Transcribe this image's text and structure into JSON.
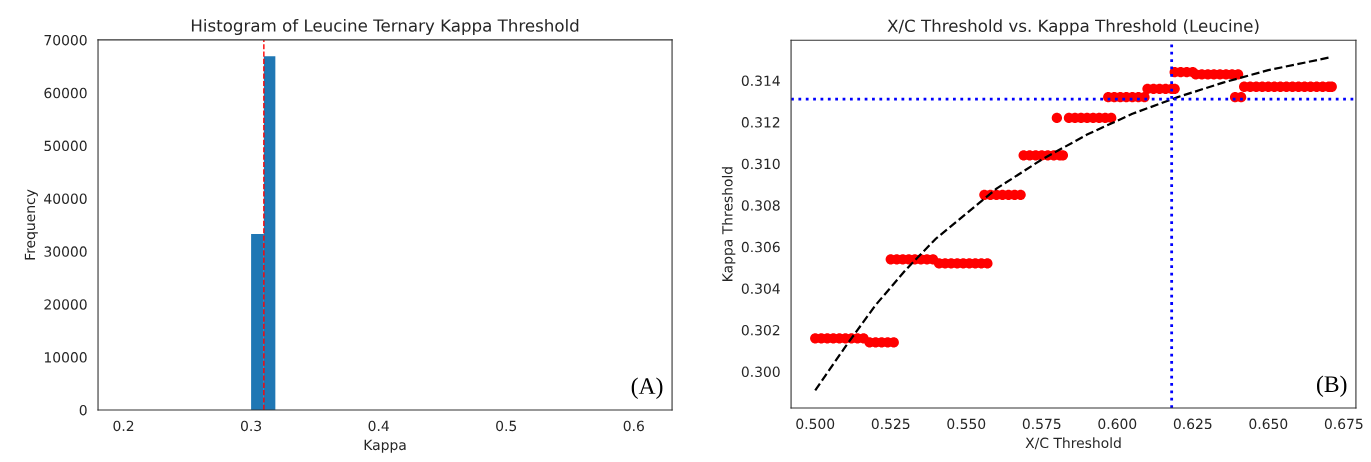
{
  "chart_data": [
    {
      "type": "histogram",
      "title": "Histogram of Leucine Ternary Kappa Threshold",
      "xlabel": "Kappa",
      "ylabel": "Frequency",
      "bins": [
        0.3,
        0.31,
        0.319
      ],
      "values": [
        33300,
        66900
      ],
      "color": "#1f77b4",
      "xlim": [
        0.18,
        0.63
      ],
      "xticks": [
        0.2,
        0.3,
        0.4,
        0.5,
        0.6
      ],
      "ylim": [
        0,
        70000
      ],
      "yticks": [
        0,
        10000,
        20000,
        30000,
        40000,
        50000,
        60000,
        70000
      ],
      "ref_lines": [
        {
          "axis": "x",
          "value": 0.31,
          "color": "#ff0000",
          "line_style": "dashed"
        }
      ],
      "annotations": [
        "(A)"
      ],
      "grid": false
    },
    {
      "type": "scatter",
      "title": "X/C Threshold vs. Kappa Threshold (Leucine)",
      "xlabel": "X/C Threshold",
      "ylabel": "Kappa Threshold",
      "series": [
        {
          "type": "scatter",
          "color": "#ff0000",
          "marker": "circle",
          "x": [
            0.5,
            0.502,
            0.504,
            0.506,
            0.508,
            0.51,
            0.512,
            0.514,
            0.516,
            0.518,
            0.52,
            0.522,
            0.524,
            0.526,
            0.525,
            0.527,
            0.529,
            0.531,
            0.533,
            0.535,
            0.537,
            0.539,
            0.541,
            0.543,
            0.545,
            0.547,
            0.549,
            0.551,
            0.553,
            0.555,
            0.557,
            0.556,
            0.558,
            0.56,
            0.562,
            0.564,
            0.566,
            0.568,
            0.569,
            0.571,
            0.573,
            0.575,
            0.577,
            0.579,
            0.581,
            0.582,
            0.58,
            0.584,
            0.586,
            0.588,
            0.59,
            0.592,
            0.594,
            0.596,
            0.598,
            0.597,
            0.599,
            0.601,
            0.603,
            0.605,
            0.607,
            0.609,
            0.61,
            0.612,
            0.614,
            0.616,
            0.618,
            0.619,
            0.619,
            0.621,
            0.623,
            0.625,
            0.626,
            0.628,
            0.63,
            0.632,
            0.634,
            0.636,
            0.638,
            0.64,
            0.639,
            0.641,
            0.642,
            0.644,
            0.646,
            0.648,
            0.65,
            0.652,
            0.654,
            0.656,
            0.658,
            0.66,
            0.662,
            0.664,
            0.666,
            0.668,
            0.67,
            0.671
          ],
          "values": [
            0.3016,
            0.3016,
            0.3016,
            0.3016,
            0.3016,
            0.3016,
            0.3016,
            0.3016,
            0.3016,
            0.3014,
            0.3014,
            0.3014,
            0.3014,
            0.3014,
            0.3054,
            0.3054,
            0.3054,
            0.3054,
            0.3054,
            0.3054,
            0.3054,
            0.3054,
            0.3052,
            0.3052,
            0.3052,
            0.3052,
            0.3052,
            0.3052,
            0.3052,
            0.3052,
            0.3052,
            0.3085,
            0.3085,
            0.3085,
            0.3085,
            0.3085,
            0.3085,
            0.3085,
            0.3104,
            0.3104,
            0.3104,
            0.3104,
            0.3104,
            0.3104,
            0.3104,
            0.3104,
            0.3122,
            0.3122,
            0.3122,
            0.3122,
            0.3122,
            0.3122,
            0.3122,
            0.3122,
            0.3122,
            0.3132,
            0.3132,
            0.3132,
            0.3132,
            0.3132,
            0.3132,
            0.3132,
            0.3136,
            0.3136,
            0.3136,
            0.3136,
            0.3136,
            0.3136,
            0.3144,
            0.3144,
            0.3144,
            0.3144,
            0.3143,
            0.3143,
            0.3143,
            0.3143,
            0.3143,
            0.3143,
            0.3143,
            0.3143,
            0.3132,
            0.3132,
            0.3137,
            0.3137,
            0.3137,
            0.3137,
            0.3137,
            0.3137,
            0.3137,
            0.3137,
            0.3137,
            0.3137,
            0.3137,
            0.3137,
            0.3137,
            0.3137,
            0.3137,
            0.3137
          ]
        },
        {
          "type": "line",
          "color": "#000000",
          "line_style": "dashed",
          "marker": "none",
          "x": [
            0.5,
            0.51,
            0.52,
            0.53,
            0.54,
            0.55,
            0.56,
            0.575,
            0.59,
            0.605,
            0.62,
            0.635,
            0.65,
            0.67
          ],
          "values": [
            0.2991,
            0.3012,
            0.3032,
            0.3049,
            0.3064,
            0.3076,
            0.3088,
            0.3102,
            0.3114,
            0.3124,
            0.3132,
            0.3139,
            0.3145,
            0.3151
          ]
        }
      ],
      "xlim": [
        0.492,
        0.679
      ],
      "xticks": [
        {
          "value": 0.5,
          "label": "0.500"
        },
        0.525,
        {
          "value": 0.55,
          "label": "0.550"
        },
        0.575,
        {
          "value": 0.6,
          "label": "0.600"
        },
        0.625,
        {
          "value": 0.65,
          "label": "0.650"
        },
        0.675
      ],
      "ylim": [
        0.29825,
        0.31594
      ],
      "yticks": [
        {
          "value": 0.3,
          "label": "0.300"
        },
        0.302,
        0.304,
        0.306,
        0.308,
        {
          "value": 0.31,
          "label": "0.310"
        },
        0.312,
        0.314
      ],
      "ref_lines": [
        {
          "axis": "x",
          "value": 0.618,
          "color": "#0000ff",
          "line_style": "dotted"
        },
        {
          "axis": "y",
          "value": 0.3131,
          "color": "#0000ff",
          "line_style": "dotted"
        }
      ],
      "annotations": [
        "(B)"
      ],
      "grid": false
    }
  ]
}
